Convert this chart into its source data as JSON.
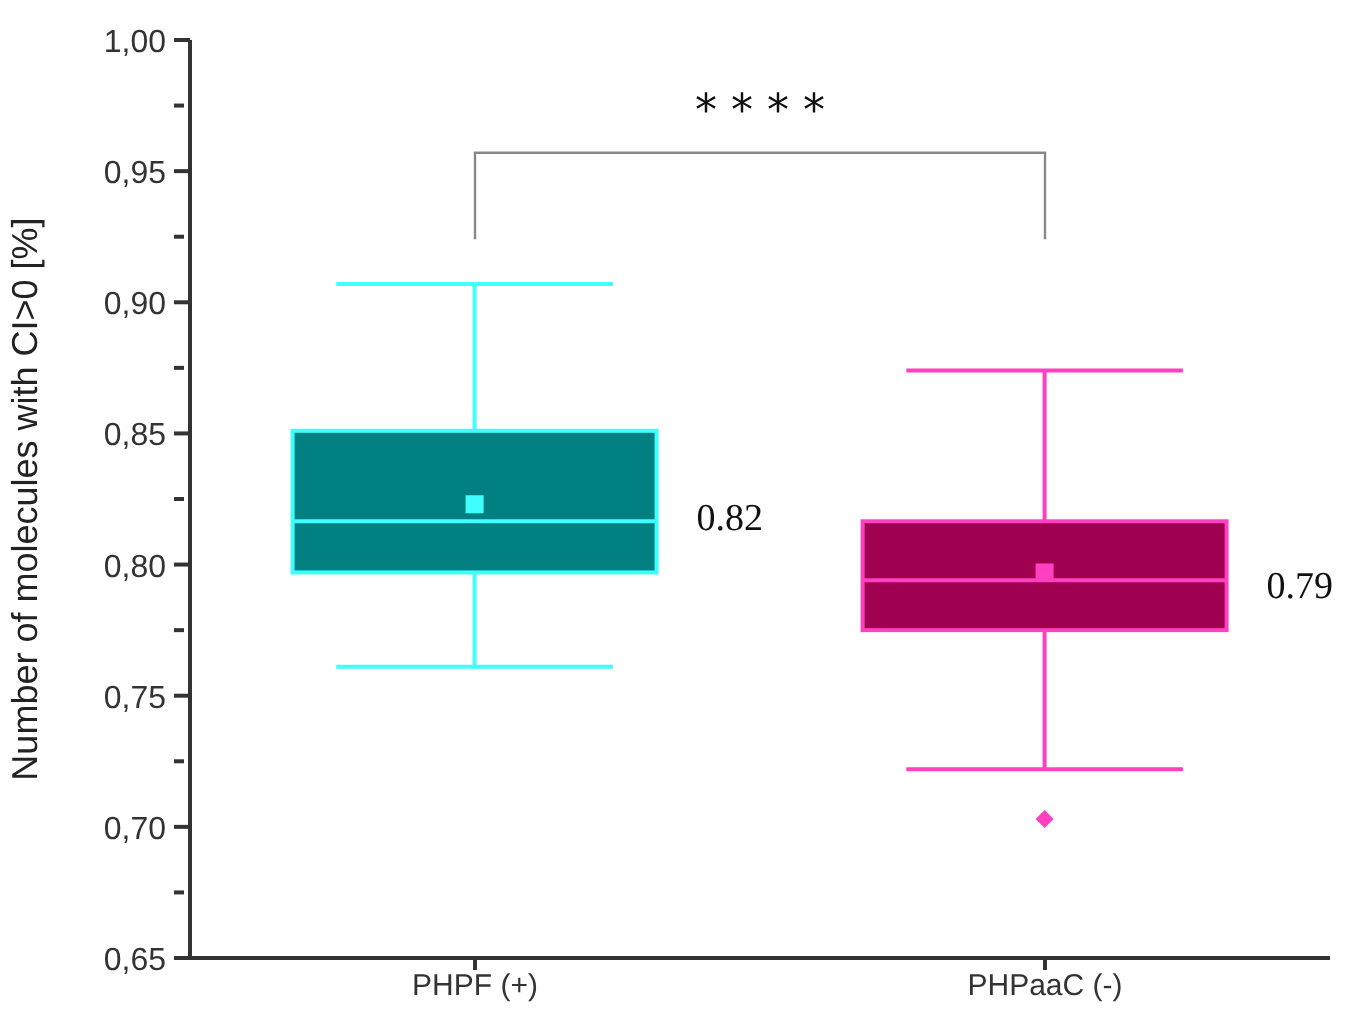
{
  "chart_data": {
    "type": "box",
    "ylabel": "Number of molecules with CI>0 [%]",
    "categories": [
      "PHPF (+)",
      "PHPaaC (-)"
    ],
    "colors": [
      "#008080",
      "#a00050"
    ],
    "boxes": [
      {
        "low": 0.761,
        "q1": 0.797,
        "median": 0.8165,
        "q3": 0.851,
        "high": 0.907,
        "mean": 0.823
      },
      {
        "low": 0.722,
        "q1": 0.775,
        "median": 0.794,
        "q3": 0.8165,
        "high": 0.874,
        "mean": 0.797,
        "outliers": [
          0.703
        ]
      }
    ],
    "ylim": [
      0.65,
      1.0
    ],
    "yticks": [
      {
        "value": 0.65,
        "label": "0,65"
      },
      {
        "value": 0.675,
        "label": null
      },
      {
        "value": 0.7,
        "label": "0,70"
      },
      {
        "value": 0.725,
        "label": null
      },
      {
        "value": 0.75,
        "label": "0,75"
      },
      {
        "value": 0.775,
        "label": null
      },
      {
        "value": 0.8,
        "label": "0,80"
      },
      {
        "value": 0.825,
        "label": null
      },
      {
        "value": 0.85,
        "label": "0,85"
      },
      {
        "value": 0.875,
        "label": null
      },
      {
        "value": 0.9,
        "label": "0,90"
      },
      {
        "value": 0.925,
        "label": null
      },
      {
        "value": 0.95,
        "label": "0,95"
      },
      {
        "value": 0.975,
        "label": null
      },
      {
        "value": 1.0,
        "label": "1,00"
      }
    ],
    "grid": false,
    "annotations": [
      "* * * *",
      "0.82",
      "0.79"
    ]
  }
}
